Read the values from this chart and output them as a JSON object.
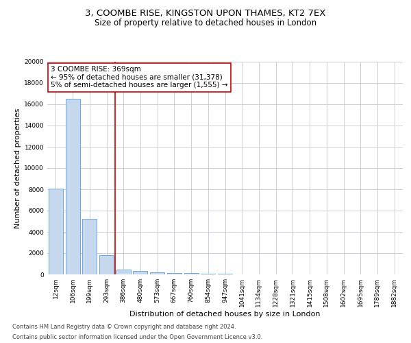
{
  "title_line1": "3, COOMBE RISE, KINGSTON UPON THAMES, KT2 7EX",
  "title_line2": "Size of property relative to detached houses in London",
  "xlabel": "Distribution of detached houses by size in London",
  "ylabel": "Number of detached properties",
  "categories": [
    "12sqm",
    "106sqm",
    "199sqm",
    "293sqm",
    "386sqm",
    "480sqm",
    "573sqm",
    "667sqm",
    "760sqm",
    "854sqm",
    "947sqm",
    "1041sqm",
    "1134sqm",
    "1228sqm",
    "1321sqm",
    "1415sqm",
    "1508sqm",
    "1602sqm",
    "1695sqm",
    "1789sqm",
    "1882sqm"
  ],
  "values": [
    8050,
    16500,
    5200,
    1800,
    450,
    350,
    175,
    150,
    100,
    75,
    50,
    30,
    20,
    15,
    10,
    8,
    6,
    5,
    4,
    3,
    2
  ],
  "bar_color": "#c5d8ed",
  "bar_edge_color": "#5b9bd5",
  "vline_x": 3.5,
  "vline_color": "#cc0000",
  "annotation_text": "3 COOMBE RISE: 369sqm\n← 95% of detached houses are smaller (31,378)\n5% of semi-detached houses are larger (1,555) →",
  "annotation_box_color": "#ffffff",
  "annotation_box_edge": "#cc0000",
  "ylim": [
    0,
    20000
  ],
  "yticks": [
    0,
    2000,
    4000,
    6000,
    8000,
    10000,
    12000,
    14000,
    16000,
    18000,
    20000
  ],
  "footer_line1": "Contains HM Land Registry data © Crown copyright and database right 2024.",
  "footer_line2": "Contains public sector information licensed under the Open Government Licence v3.0.",
  "bg_color": "#ffffff",
  "grid_color": "#c0c8d8",
  "title_fontsize": 9.5,
  "subtitle_fontsize": 8.5,
  "axis_label_fontsize": 8,
  "tick_fontsize": 6.5,
  "annotation_fontsize": 7.5,
  "footer_fontsize": 6
}
